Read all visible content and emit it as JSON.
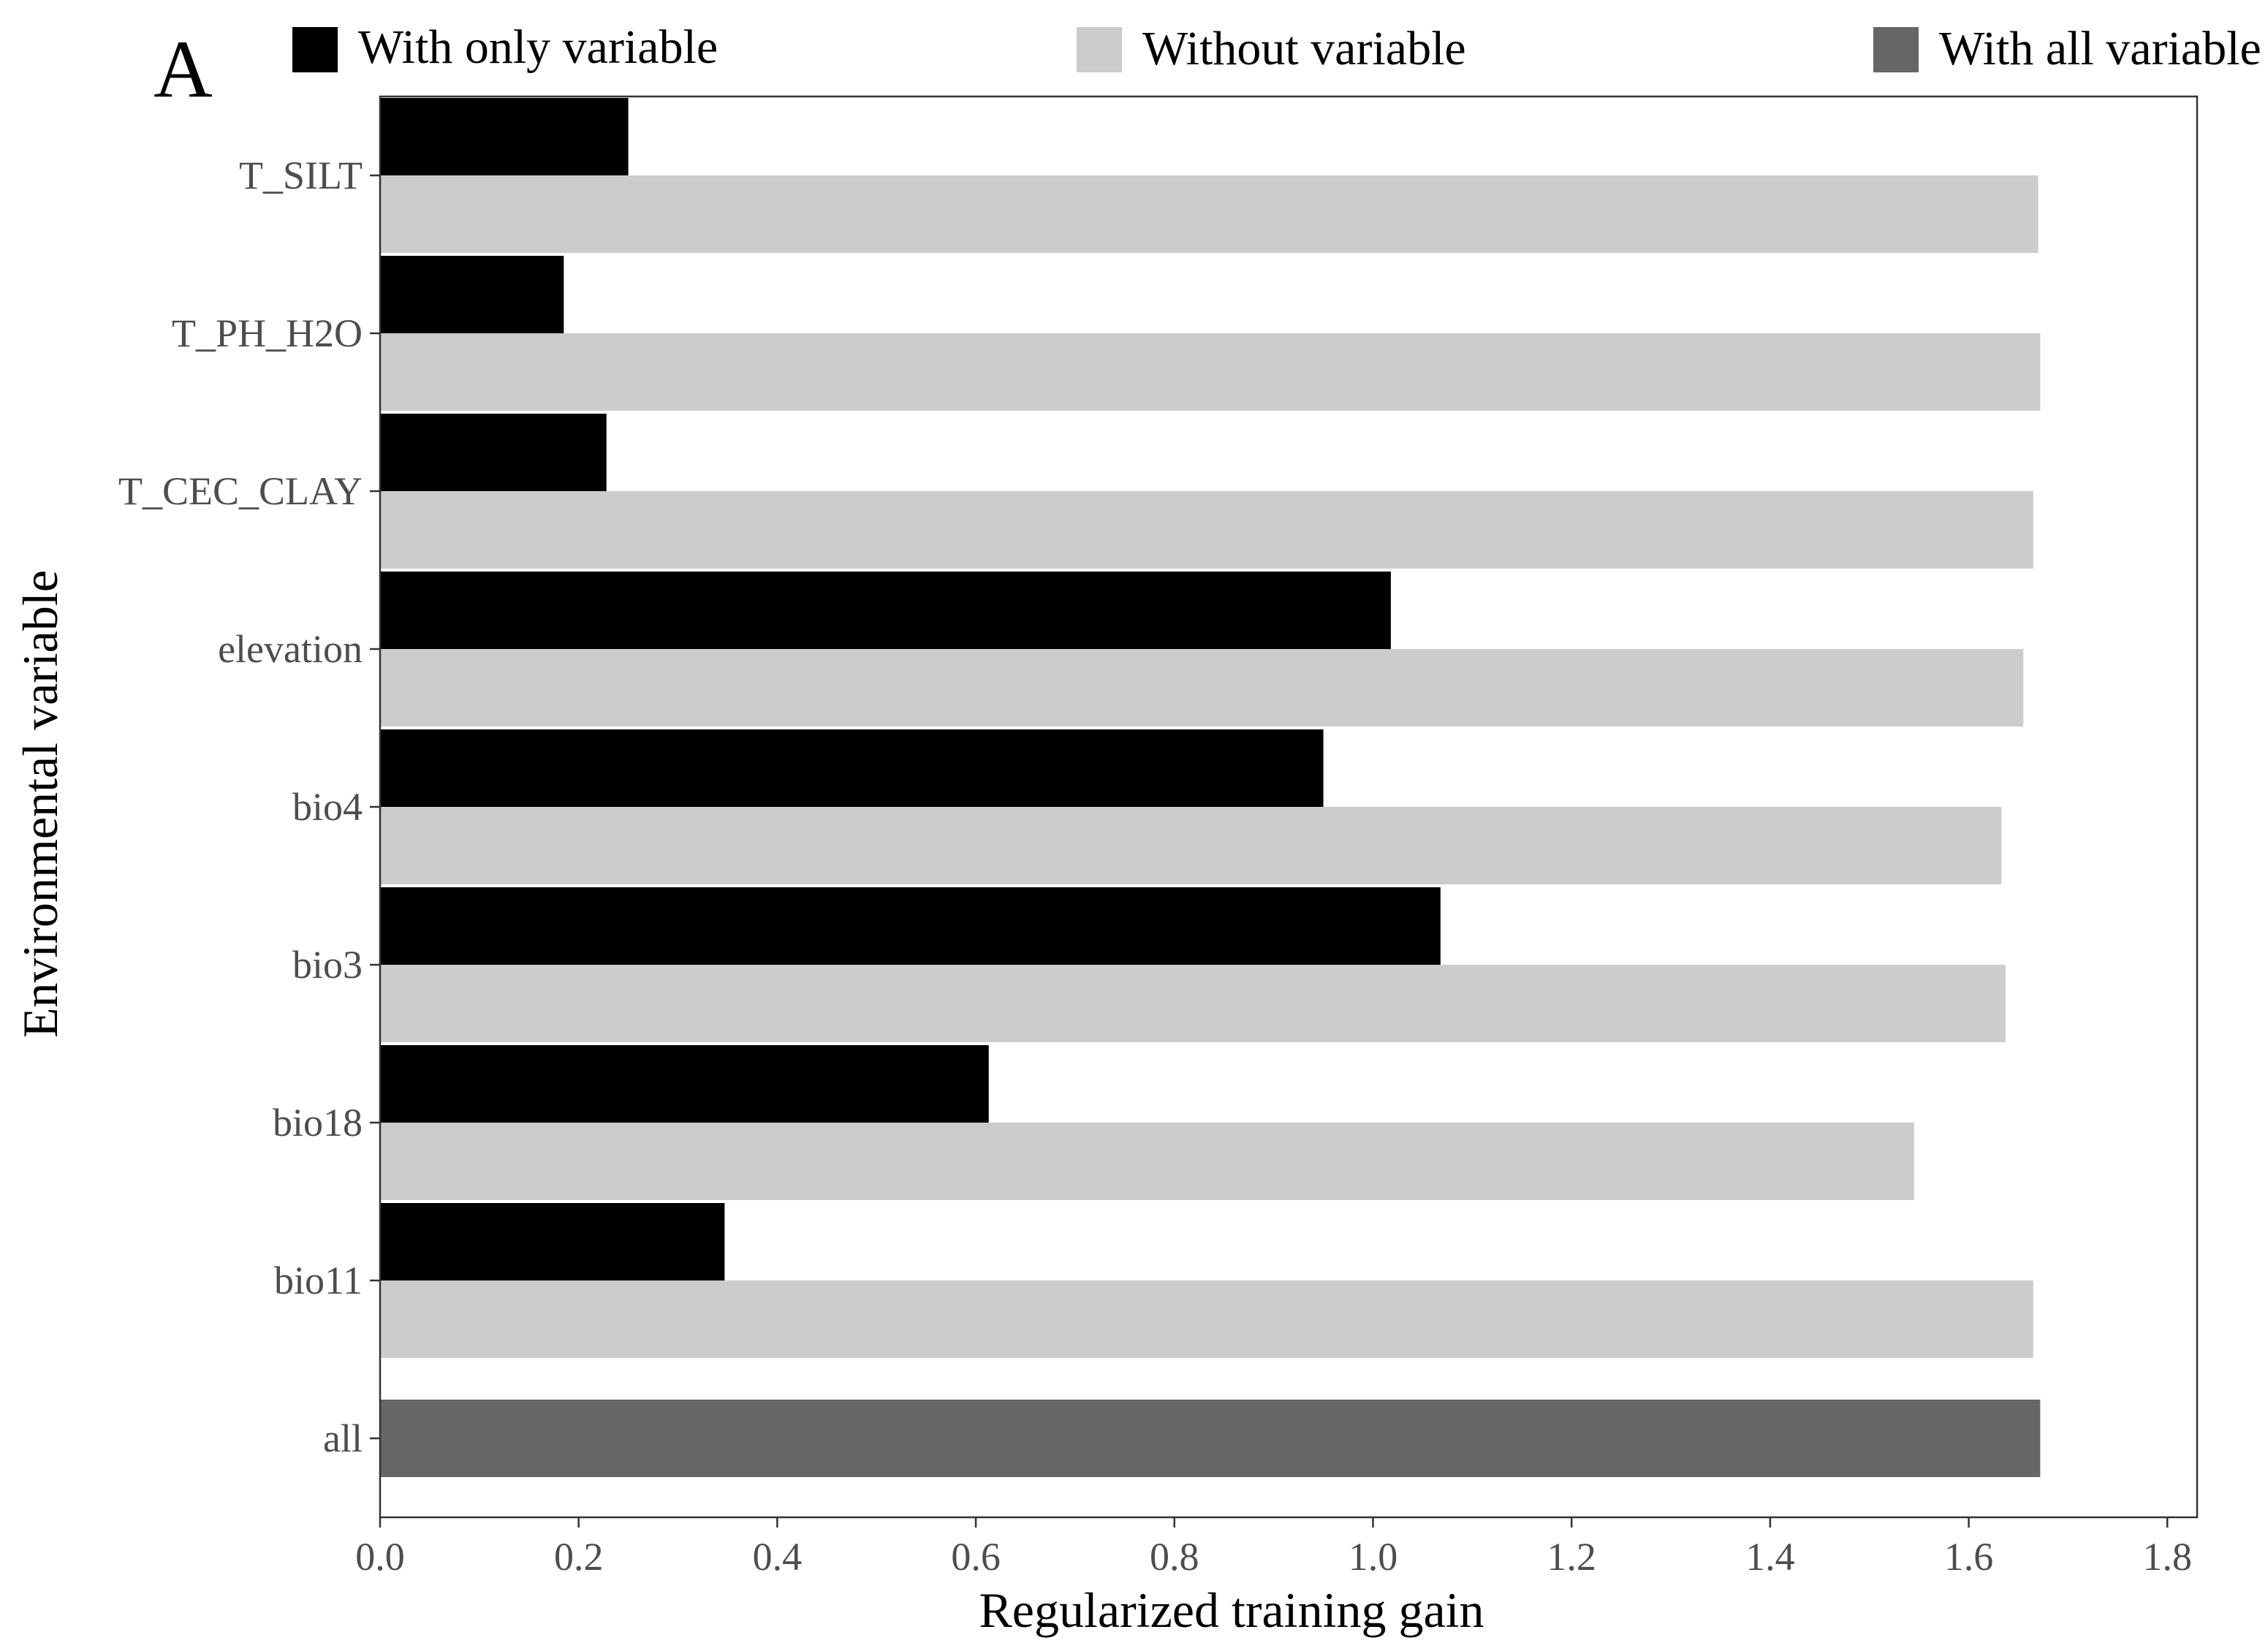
{
  "panel_label": "A",
  "colors": {
    "with_only": "#000000",
    "without": "#cccccc",
    "with_all": "#666666",
    "axis": "#333333",
    "tick_label": "#4d4d4d"
  },
  "legend": [
    {
      "key": "with_only",
      "label": "With only variable"
    },
    {
      "key": "without",
      "label": "Without variable"
    },
    {
      "key": "with_all",
      "label": "With all variable"
    }
  ],
  "chart_data": {
    "type": "bar",
    "orientation": "horizontal",
    "xlabel": "Regularized training gain",
    "ylabel": "Environmental variable",
    "xlim": [
      0,
      1.83
    ],
    "xticks": [
      0.0,
      0.2,
      0.4,
      0.6,
      0.8,
      1.0,
      1.2,
      1.4,
      1.6,
      1.8
    ],
    "xtick_labels": [
      "0.0",
      "0.2",
      "0.4",
      "0.6",
      "0.8",
      "1.0",
      "1.2",
      "1.4",
      "1.6",
      "1.8"
    ],
    "categories": [
      "T_SILT",
      "T_PH_H2O",
      "T_CEC_CLAY",
      "elevation",
      "bio4",
      "bio3",
      "bio18",
      "bio11",
      "all"
    ],
    "series": [
      {
        "name": "With only variable",
        "key": "with_only",
        "values": [
          0.25,
          0.185,
          0.228,
          1.018,
          0.95,
          1.068,
          0.613,
          0.347,
          null
        ]
      },
      {
        "name": "Without variable",
        "key": "without",
        "values": [
          1.67,
          1.672,
          1.665,
          1.655,
          1.633,
          1.637,
          1.545,
          1.665,
          null
        ]
      },
      {
        "name": "With all variable",
        "key": "with_all",
        "values": [
          null,
          null,
          null,
          null,
          null,
          null,
          null,
          null,
          1.672
        ]
      }
    ],
    "grid": false,
    "legend_position": "top"
  }
}
